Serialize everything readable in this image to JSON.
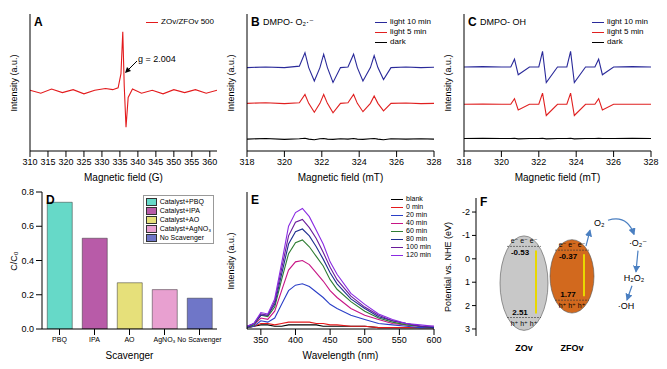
{
  "chart_data": [
    {
      "title": "A",
      "type": "line",
      "xlabel": "Magnetic field (G)",
      "ylabel": "Intensity (a.u.)",
      "annotations": [
        "g = 2.004"
      ],
      "legend": "upper right",
      "tick_labels": "x",
      "xlim": [
        310,
        362
      ],
      "xticks": [
        310,
        315,
        320,
        325,
        330,
        335,
        340,
        345,
        350,
        355,
        360
      ],
      "ylim": [
        -1,
        1.3
      ],
      "x": [
        310,
        313,
        316,
        319,
        322,
        325,
        328,
        331,
        333,
        334.5,
        335.3,
        335.8,
        336.2,
        336.7,
        337.3,
        338.5,
        341,
        344,
        347,
        350,
        353,
        356,
        359,
        362
      ],
      "series": [
        {
          "name": "ZOv/ZFOv 500",
          "color": "#e31a1c",
          "values": [
            0.02,
            -0.03,
            0.04,
            -0.02,
            0.03,
            -0.04,
            0.02,
            0.05,
            0.03,
            0.06,
            0.3,
            1.0,
            0.1,
            -0.6,
            -0.1,
            0.04,
            -0.03,
            0.02,
            -0.04,
            0.03,
            -0.02,
            0.03,
            -0.03,
            0.02
          ]
        }
      ]
    },
    {
      "title": "B",
      "subtitle": "DMPO- O₂·⁻",
      "type": "line",
      "xlabel": "Magnetic field (mT)",
      "ylabel": "Intensity (a.u.)",
      "legend": "upper right",
      "tick_labels": "x",
      "xlim": [
        318,
        328
      ],
      "xticks": [
        318,
        320,
        322,
        324,
        326,
        328
      ],
      "ylim": [
        -0.4,
        4.2
      ],
      "x": [
        318,
        319,
        320,
        320.8,
        321.1,
        321.3,
        321.6,
        321.9,
        322.1,
        322.3,
        322.6,
        323,
        323.4,
        323.7,
        323.9,
        324.2,
        324.6,
        324.8,
        325,
        325.3,
        325.7,
        326.5,
        327.3,
        328
      ],
      "series": [
        {
          "name": "light 10 min",
          "color": "#2a2a9a",
          "values": [
            2.4,
            2.42,
            2.4,
            2.45,
            2.9,
            2.4,
            1.95,
            2.4,
            2.85,
            2.4,
            1.9,
            2.4,
            2.42,
            2.85,
            2.4,
            1.95,
            2.4,
            2.8,
            2.4,
            2.0,
            2.4,
            2.42,
            2.4,
            2.41
          ]
        },
        {
          "name": "light 5 min",
          "color": "#e02020",
          "values": [
            1.2,
            1.22,
            1.19,
            1.22,
            1.5,
            1.2,
            0.9,
            1.2,
            1.5,
            1.2,
            0.88,
            1.2,
            1.22,
            1.5,
            1.2,
            0.92,
            1.2,
            1.45,
            1.2,
            0.95,
            1.2,
            1.21,
            1.19,
            1.2
          ]
        },
        {
          "name": "dark",
          "color": "#000000",
          "values": [
            0,
            0.02,
            -0.01,
            0.01,
            0.03,
            0,
            -0.02,
            0.01,
            0.02,
            0,
            -0.01,
            0.01,
            0,
            0.02,
            0,
            -0.01,
            0.01,
            0.02,
            0,
            -0.02,
            0.01,
            0,
            0.01,
            0
          ]
        }
      ]
    },
    {
      "title": "C",
      "subtitle": "DMPO- OH",
      "type": "line",
      "xlabel": "Magnetic field (mT)",
      "ylabel": "Intensity (a.u.)",
      "legend": "upper right",
      "tick_labels": "x",
      "xlim": [
        318,
        328
      ],
      "xticks": [
        318,
        320,
        322,
        324,
        326,
        328
      ],
      "ylim": [
        -0.4,
        4.0
      ],
      "x": [
        318,
        319,
        320,
        320.5,
        320.7,
        320.9,
        321.5,
        322,
        322.2,
        322.4,
        323,
        323.5,
        323.7,
        323.9,
        324.5,
        325,
        325.2,
        325.4,
        326,
        327,
        328
      ],
      "series": [
        {
          "name": "light 10 min",
          "color": "#2a2a9a",
          "values": [
            2.3,
            2.31,
            2.3,
            2.3,
            2.55,
            2.05,
            2.3,
            2.3,
            2.8,
            1.8,
            2.3,
            2.3,
            2.8,
            1.8,
            2.3,
            2.3,
            2.55,
            2.05,
            2.3,
            2.31,
            2.3
          ]
        },
        {
          "name": "light 5 min",
          "color": "#e02020",
          "values": [
            1.1,
            1.11,
            1.1,
            1.1,
            1.28,
            0.92,
            1.1,
            1.1,
            1.46,
            0.74,
            1.1,
            1.1,
            1.46,
            0.74,
            1.1,
            1.1,
            1.28,
            0.92,
            1.1,
            1.1,
            1.1
          ]
        },
        {
          "name": "dark",
          "color": "#000000",
          "values": [
            0,
            0.01,
            0,
            0,
            0.01,
            -0.01,
            0,
            0,
            0.01,
            -0.01,
            0,
            0,
            0.01,
            -0.01,
            0,
            0,
            0.01,
            0,
            0,
            0.01,
            0
          ]
        }
      ]
    },
    {
      "title": "D",
      "type": "bar",
      "stacked": true,
      "xlabel": "Scavenger",
      "ylabel": "C/C₀",
      "legend": "upper right",
      "categories": [
        "PBQ",
        "IPA",
        "AO",
        "AgNO₃",
        "No Scavenger"
      ],
      "ylim": [
        0,
        0.8
      ],
      "yticks": [
        {
          "value": 0,
          "label": "0.0"
        },
        0.2,
        0.4,
        0.6,
        0.8
      ],
      "series": [
        {
          "name": "Catalyst+PBQ",
          "color": "#66d9c8",
          "values": [
            0.74,
            null,
            null,
            null,
            null
          ]
        },
        {
          "name": "Catalyst+IPA",
          "color": "#b85ba8",
          "values": [
            null,
            0.53,
            null,
            null,
            null
          ]
        },
        {
          "name": "Catalyst+AO",
          "color": "#e6e07a",
          "values": [
            null,
            null,
            0.27,
            null,
            null
          ]
        },
        {
          "name": "Catalyst+AgNO₃",
          "color": "#e8a0d0",
          "values": [
            null,
            null,
            null,
            0.23,
            null
          ]
        },
        {
          "name": "No Scavenger",
          "color": "#6f76c8",
          "values": [
            null,
            null,
            null,
            null,
            0.18
          ]
        }
      ]
    },
    {
      "title": "E",
      "type": "line",
      "xlabel": "Wavelength (nm)",
      "ylabel": "Intensity (a.u.)",
      "legend": "upper right",
      "tick_labels": "x",
      "xlim": [
        330,
        600
      ],
      "xticks": [
        350,
        400,
        450,
        500,
        550,
        600
      ],
      "ylim": [
        0,
        1
      ],
      "x": [
        330,
        340,
        350,
        360,
        370,
        380,
        390,
        400,
        410,
        420,
        430,
        440,
        450,
        460,
        480,
        500,
        520,
        540,
        560,
        580,
        600
      ],
      "series": [
        {
          "name": "blank",
          "color": "#000000",
          "values": [
            0.01,
            0.02,
            0.03,
            0.03,
            0.02,
            0.02,
            0.03,
            0.03,
            0.03,
            0.03,
            0.03,
            0.02,
            0.02,
            0.02,
            0.02,
            0.02,
            0.01,
            0.01,
            0.01,
            0.01,
            0.01
          ]
        },
        {
          "name": "0 min",
          "color": "#e41a1c",
          "values": [
            0.01,
            0.02,
            0.04,
            0.04,
            0.03,
            0.04,
            0.05,
            0.05,
            0.05,
            0.05,
            0.04,
            0.04,
            0.03,
            0.03,
            0.02,
            0.02,
            0.01,
            0.01,
            0.01,
            0.01,
            0.01
          ]
        },
        {
          "name": "20 min",
          "color": "#2b3fc7",
          "values": [
            0.01,
            0.02,
            0.06,
            0.05,
            0.08,
            0.18,
            0.28,
            0.32,
            0.33,
            0.31,
            0.27,
            0.23,
            0.18,
            0.15,
            0.1,
            0.07,
            0.04,
            0.03,
            0.02,
            0.01,
            0.01
          ]
        },
        {
          "name": "40 min",
          "color": "#c71585",
          "values": [
            0.01,
            0.03,
            0.08,
            0.07,
            0.13,
            0.28,
            0.43,
            0.49,
            0.5,
            0.47,
            0.41,
            0.35,
            0.28,
            0.23,
            0.15,
            0.1,
            0.07,
            0.04,
            0.03,
            0.02,
            0.01
          ]
        },
        {
          "name": "60 min",
          "color": "#2e7d32",
          "values": [
            0.01,
            0.03,
            0.1,
            0.09,
            0.16,
            0.36,
            0.55,
            0.63,
            0.65,
            0.6,
            0.53,
            0.46,
            0.36,
            0.29,
            0.2,
            0.13,
            0.08,
            0.05,
            0.03,
            0.02,
            0.01
          ]
        },
        {
          "name": "80 min",
          "color": "#1f2f8f",
          "values": [
            0.01,
            0.04,
            0.1,
            0.1,
            0.18,
            0.4,
            0.62,
            0.71,
            0.73,
            0.68,
            0.6,
            0.51,
            0.41,
            0.33,
            0.22,
            0.15,
            0.09,
            0.06,
            0.04,
            0.02,
            0.01
          ]
        },
        {
          "name": "100 min",
          "color": "#6a1b9a",
          "values": [
            0.02,
            0.04,
            0.11,
            0.1,
            0.2,
            0.44,
            0.68,
            0.78,
            0.8,
            0.74,
            0.66,
            0.56,
            0.45,
            0.36,
            0.24,
            0.16,
            0.1,
            0.06,
            0.04,
            0.02,
            0.02
          ]
        },
        {
          "name": "120 min",
          "color": "#8a2be2",
          "values": [
            0.02,
            0.04,
            0.12,
            0.11,
            0.22,
            0.48,
            0.75,
            0.85,
            0.88,
            0.82,
            0.72,
            0.62,
            0.49,
            0.4,
            0.26,
            0.18,
            0.11,
            0.07,
            0.04,
            0.03,
            0.02
          ]
        }
      ]
    }
  ],
  "diagram": {
    "title": "F",
    "ylabel": "Potential vs. NHE (eV)",
    "ylim": [
      -2.6,
      3.3
    ],
    "yticks": [
      -2,
      -1,
      0,
      1,
      2,
      3
    ],
    "bands": [
      {
        "name": "ZOv",
        "cb": -0.53,
        "vb": 2.51,
        "color": "#c8c8c8",
        "electrons": "e⁻ e⁻ e⁻",
        "holes": "h⁺ h⁺ h⁺"
      },
      {
        "name": "ZFOv",
        "cb": -0.37,
        "vb": 1.77,
        "color": "#d2691e",
        "electrons": "e⁻ e⁻ e⁻",
        "holes": "h⁺ h⁺ h⁺"
      }
    ],
    "species": [
      "O₂",
      "·O₂⁻",
      "H₂O₂",
      "·OH"
    ]
  }
}
